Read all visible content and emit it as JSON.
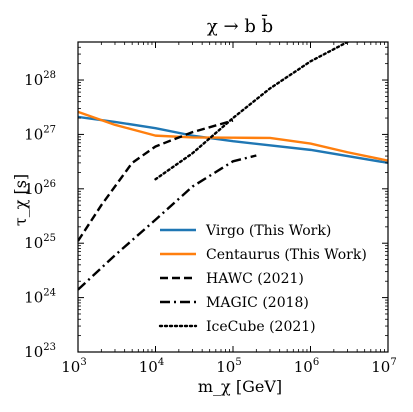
{
  "chart_data": {
    "type": "line",
    "title": "χ → b b̄",
    "xlabel": "m_χ [GeV]",
    "ylabel": "τ_χ [s]",
    "xscale": "log",
    "yscale": "log",
    "xlim": [
      1000,
      10000000
    ],
    "ylim": [
      1e+23,
      5e+28
    ],
    "xticks": [
      {
        "base": "10",
        "exp": "3",
        "value": 1000
      },
      {
        "base": "10",
        "exp": "4",
        "value": 10000
      },
      {
        "base": "10",
        "exp": "5",
        "value": 100000
      },
      {
        "base": "10",
        "exp": "6",
        "value": 1000000
      },
      {
        "base": "10",
        "exp": "7",
        "value": 10000000
      }
    ],
    "yticks": [
      {
        "base": "10",
        "exp": "23",
        "value": 1e+23
      },
      {
        "base": "10",
        "exp": "24",
        "value": 1e+24
      },
      {
        "base": "10",
        "exp": "25",
        "value": 1e+25
      },
      {
        "base": "10",
        "exp": "26",
        "value": 1e+26
      },
      {
        "base": "10",
        "exp": "27",
        "value": 1e+27
      },
      {
        "base": "10",
        "exp": "28",
        "value": 1e+28
      }
    ],
    "grid": false,
    "legend_position": "lower-right",
    "series": [
      {
        "name": "Virgo (This Work)",
        "color": "#1f77b4",
        "style": "solid",
        "x": [
          1000,
          3000,
          10000,
          30000,
          100000,
          1000000,
          10000000
        ],
        "y": [
          2.1e+27,
          1.7e+27,
          1.3e+27,
          9.5e+26,
          7.5e+26,
          5.2e+26,
          3e+26
        ]
      },
      {
        "name": "Centaurus (This Work)",
        "color": "#ff7f0e",
        "style": "solid",
        "x": [
          1000,
          3000,
          10000,
          30000,
          100000,
          300000,
          1000000,
          3000000,
          10000000
        ],
        "y": [
          2.6e+27,
          1.5e+27,
          9.5e+26,
          8.8e+26,
          8.7e+26,
          8.6e+26,
          6.8e+26,
          4.7e+26,
          3.3e+26
        ]
      },
      {
        "name": "HAWC (2021)",
        "color": "#000000",
        "style": "dashed",
        "x": [
          1000,
          2000,
          5000,
          10000,
          30000,
          100000
        ],
        "y": [
          1.1e+25,
          5e+25,
          3e+26,
          6e+26,
          1.1e+27,
          1.8e+27
        ]
      },
      {
        "name": "MAGIC (2018)",
        "color": "#000000",
        "style": "dashdot",
        "x": [
          1000,
          3000,
          10000,
          30000,
          100000,
          200000
        ],
        "y": [
          1.4e+24,
          6e+24,
          2.7e+25,
          1.1e+26,
          3.2e+26,
          4.1e+26
        ]
      },
      {
        "name": "IceCube (2021)",
        "color": "#000000",
        "style": "dotted",
        "x": [
          10000,
          30000,
          100000,
          300000,
          1000000,
          3000000
        ],
        "y": [
          1.5e+26,
          4.5e+26,
          2e+27,
          7e+27,
          2.2e+28,
          5e+28
        ]
      }
    ]
  }
}
